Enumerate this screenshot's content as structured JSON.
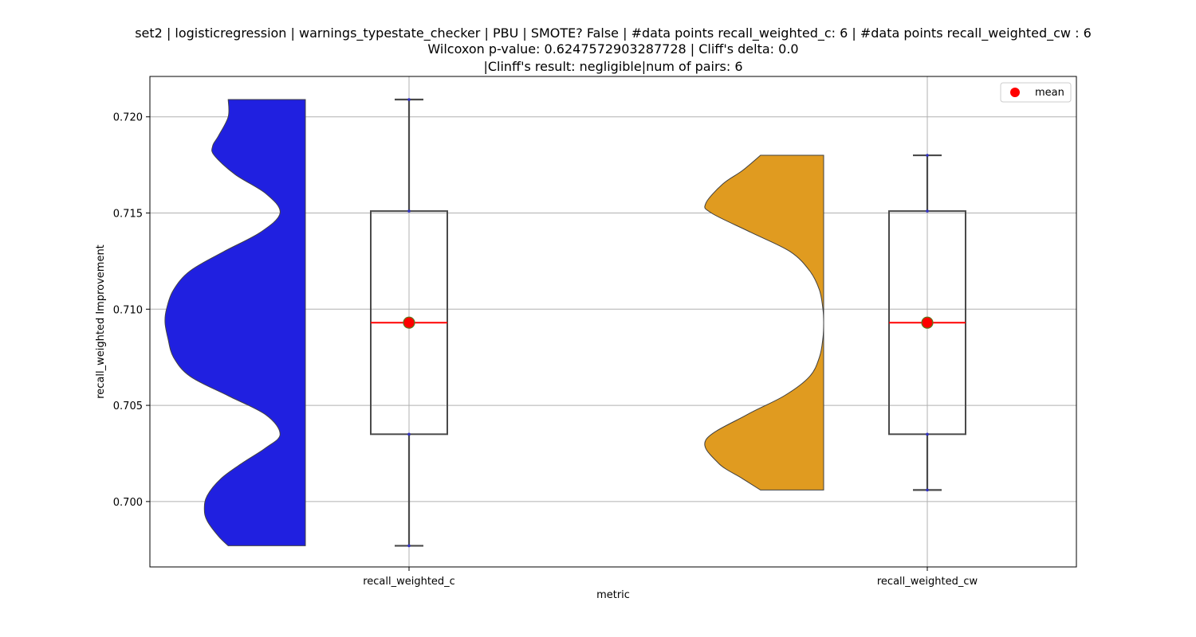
{
  "chart_data": {
    "type": "violin-box",
    "title_lines": [
      "set2 | logisticregression | warnings_typestate_checker | PBU | SMOTE? False | #data points recall_weighted_c: 6 | #data points recall_weighted_cw : 6",
      "Wilcoxon p-value: 0.6247572903287728 | Cliff's delta: 0.0",
      "|Clinff's result: negligible|num of pairs: 6"
    ],
    "xlabel": "metric",
    "ylabel": "recall_weighted Improvement",
    "ylim": [
      0.6966,
      0.7221
    ],
    "yticks": [
      0.7,
      0.705,
      0.71,
      0.715,
      0.72
    ],
    "ytick_labels": [
      "0.700",
      "0.705",
      "0.710",
      "0.715",
      "0.720"
    ],
    "categories": [
      "recall_weighted_c",
      "recall_weighted_cw"
    ],
    "grid": true,
    "legend": {
      "placement": "top-right",
      "entries": [
        {
          "label": "mean",
          "color": "#ff0000"
        }
      ]
    },
    "series": [
      {
        "category": "recall_weighted_c",
        "color": "#2020e0",
        "violin_min": 0.6977,
        "violin_max": 0.7209,
        "density": [
          [
            0.6977,
            0.55
          ],
          [
            0.6982,
            0.62
          ],
          [
            0.699,
            0.7
          ],
          [
            0.6996,
            0.72
          ],
          [
            0.7003,
            0.7
          ],
          [
            0.7012,
            0.6
          ],
          [
            0.702,
            0.45
          ],
          [
            0.7028,
            0.28
          ],
          [
            0.7035,
            0.18
          ],
          [
            0.7045,
            0.28
          ],
          [
            0.7055,
            0.55
          ],
          [
            0.7065,
            0.82
          ],
          [
            0.7075,
            0.94
          ],
          [
            0.7085,
            0.98
          ],
          [
            0.7093,
            1.0
          ],
          [
            0.71,
            0.99
          ],
          [
            0.711,
            0.94
          ],
          [
            0.712,
            0.82
          ],
          [
            0.713,
            0.58
          ],
          [
            0.714,
            0.32
          ],
          [
            0.715,
            0.18
          ],
          [
            0.716,
            0.28
          ],
          [
            0.717,
            0.5
          ],
          [
            0.718,
            0.65
          ],
          [
            0.7185,
            0.66
          ],
          [
            0.719,
            0.62
          ],
          [
            0.72,
            0.55
          ],
          [
            0.7209,
            0.55
          ]
        ],
        "box": {
          "q1": 0.7035,
          "median": 0.7093,
          "q3": 0.7151,
          "whisker_low": 0.6977,
          "whisker_high": 0.7209
        },
        "mean": 0.7093
      },
      {
        "category": "recall_weighted_cw",
        "color": "#e09b20",
        "violin_min": 0.7006,
        "violin_max": 0.718,
        "density": [
          [
            0.7006,
            0.45
          ],
          [
            0.7012,
            0.58
          ],
          [
            0.702,
            0.75
          ],
          [
            0.7032,
            0.84
          ],
          [
            0.7045,
            0.55
          ],
          [
            0.7055,
            0.28
          ],
          [
            0.7065,
            0.1
          ],
          [
            0.7075,
            0.03
          ],
          [
            0.7085,
            0.005
          ],
          [
            0.7093,
            0.0
          ],
          [
            0.71,
            0.005
          ],
          [
            0.711,
            0.03
          ],
          [
            0.712,
            0.1
          ],
          [
            0.713,
            0.24
          ],
          [
            0.714,
            0.52
          ],
          [
            0.715,
            0.8
          ],
          [
            0.7155,
            0.84
          ],
          [
            0.7165,
            0.72
          ],
          [
            0.7172,
            0.58
          ],
          [
            0.718,
            0.45
          ]
        ],
        "box": {
          "q1": 0.7035,
          "median": 0.7093,
          "q3": 0.7151,
          "whisker_low": 0.7006,
          "whisker_high": 0.718
        },
        "mean": 0.7093
      }
    ]
  }
}
